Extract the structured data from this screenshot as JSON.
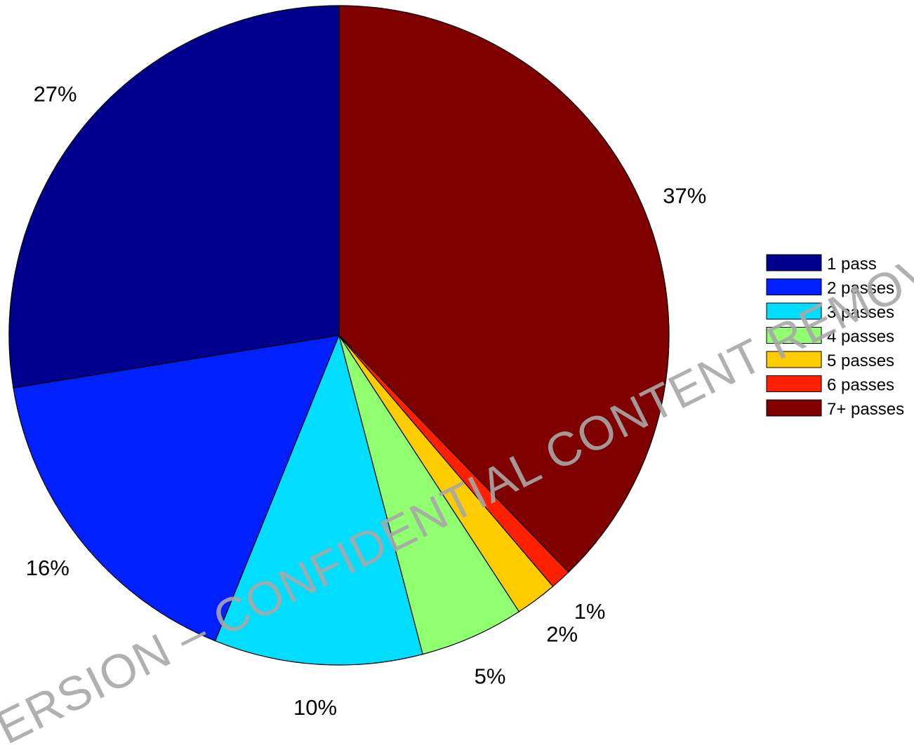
{
  "chart_data": {
    "type": "pie",
    "title": "",
    "legend_position": "right",
    "slices": [
      {
        "label": "1 pass",
        "value": 27,
        "value_label": "27%",
        "color": "#00008F"
      },
      {
        "label": "2 passes",
        "value": 16,
        "value_label": "16%",
        "color": "#0020FF"
      },
      {
        "label": "3 passes",
        "value": 10,
        "value_label": "10%",
        "color": "#00DDFF"
      },
      {
        "label": "4 passes",
        "value": 5,
        "value_label": "5%",
        "color": "#90FF70"
      },
      {
        "label": "5 passes",
        "value": 2,
        "value_label": "2%",
        "color": "#FFCC00"
      },
      {
        "label": "6 passes",
        "value": 1,
        "value_label": "1%",
        "color": "#FF2000"
      },
      {
        "label": "7+ passes",
        "value": 37,
        "value_label": "37%",
        "color": "#800000"
      }
    ]
  },
  "watermark": {
    "text": "ERSION – CONFIDENTIAL CONTENT REMOV",
    "color": "#a8a8a8"
  }
}
